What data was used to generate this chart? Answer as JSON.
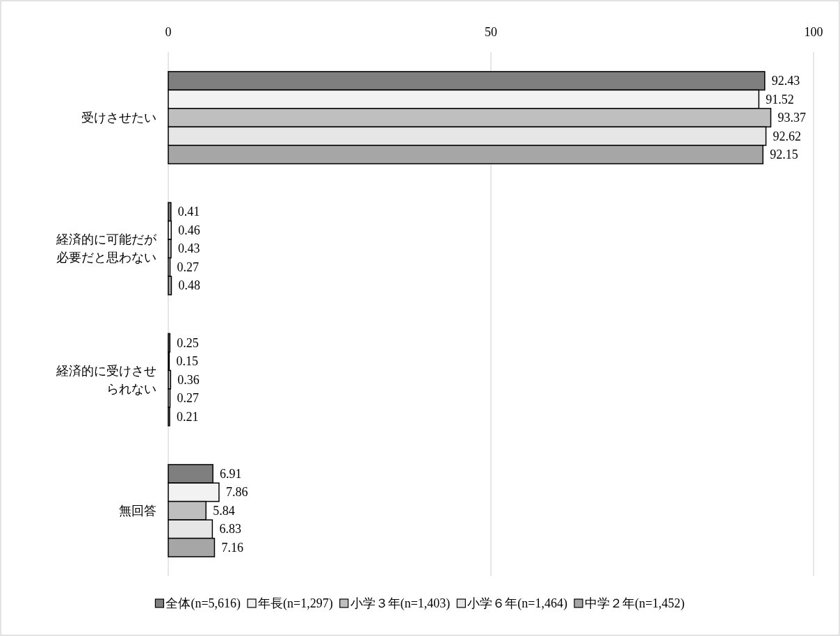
{
  "chart_data": {
    "type": "bar",
    "orientation": "horizontal",
    "categories": [
      "受けさせたい",
      "経済的に可能だが必要だと思わない",
      "経済的に受けさせられない",
      "無回答"
    ],
    "series": [
      {
        "name": "全体(n=5,616)",
        "color": "#7f7f7f",
        "values": [
          92.43,
          0.41,
          0.25,
          6.91
        ]
      },
      {
        "name": "年長(n=1,297)",
        "color": "#f2f2f2",
        "values": [
          91.52,
          0.46,
          0.15,
          7.86
        ]
      },
      {
        "name": "小学３年(n=1,403)",
        "color": "#bfbfbf",
        "values": [
          93.37,
          0.43,
          0.36,
          5.84
        ]
      },
      {
        "name": "小学６年(n=1,464)",
        "color": "#e6e6e6",
        "values": [
          92.62,
          0.27,
          0.27,
          6.83
        ]
      },
      {
        "name": "中学２年(n=1,452)",
        "color": "#a6a6a6",
        "values": [
          92.15,
          0.48,
          0.21,
          7.16
        ]
      }
    ],
    "xlim": [
      0,
      100
    ],
    "xticks": [
      0,
      50,
      100
    ],
    "grid": "x",
    "legend": "bottom",
    "data_labels": true
  }
}
